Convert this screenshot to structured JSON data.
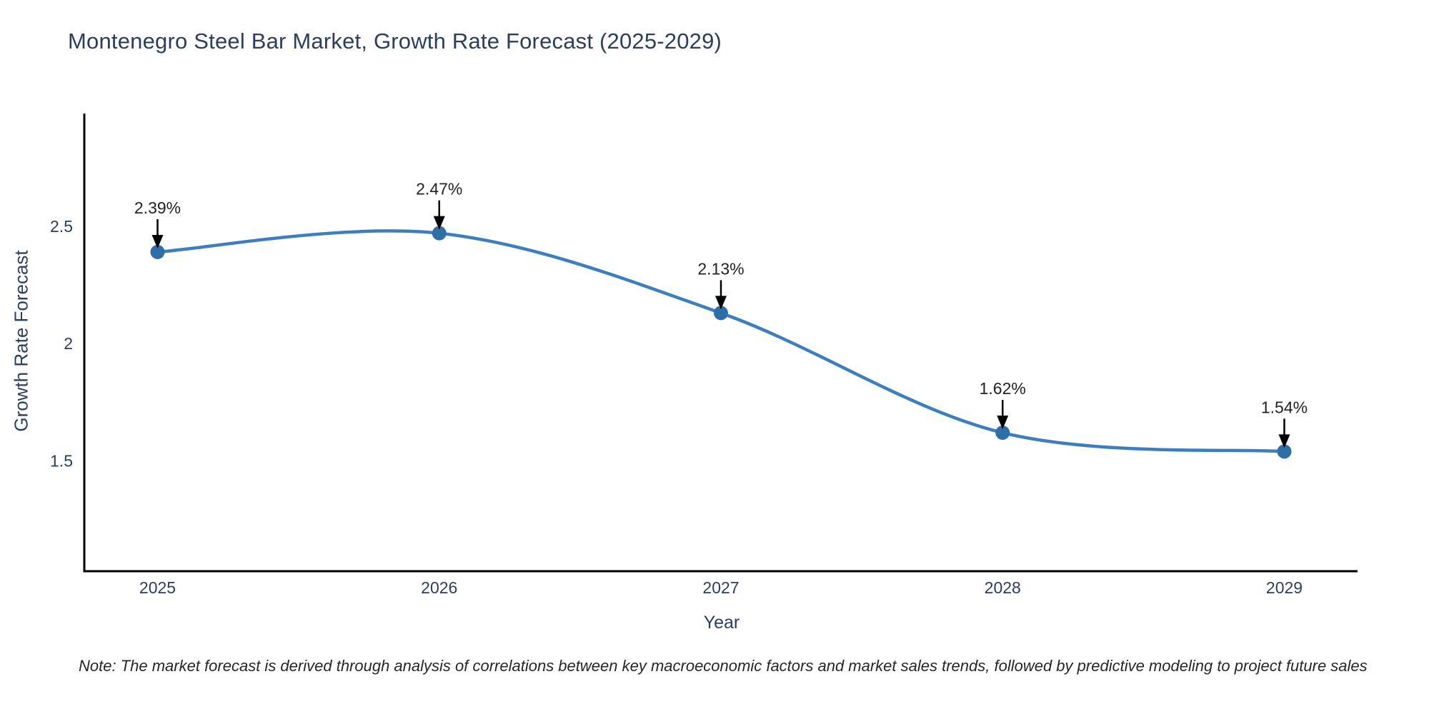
{
  "header": {
    "title": "Montenegro Steel Bar Market, Growth Rate Forecast (2025-2029)"
  },
  "footer": {
    "note": "Note: The market forecast is derived through analysis of correlations between key macroeconomic factors and market sales trends, followed by predictive modeling to project future sales"
  },
  "chart_data": {
    "type": "line",
    "title": "Montenegro Steel Bar Market, Growth Rate Forecast (2025-2029)",
    "xlabel": "Year",
    "ylabel": "Growth Rate Forecast",
    "x": [
      2025,
      2026,
      2027,
      2028,
      2029
    ],
    "series": [
      {
        "name": "Growth Rate Forecast",
        "values": [
          2.39,
          2.47,
          2.13,
          1.62,
          1.54
        ]
      }
    ],
    "point_labels": [
      "2.39%",
      "2.47%",
      "2.13%",
      "1.62%",
      "1.54%"
    ],
    "xtick_labels": [
      "2025",
      "2026",
      "2027",
      "2028",
      "2029"
    ],
    "ytick_values": [
      1.5,
      2.0,
      2.5
    ],
    "ytick_labels": [
      "1.5",
      "2",
      "2.5"
    ],
    "xlim": [
      2024.74,
      2029.26
    ],
    "ylim": [
      1.03,
      2.98
    ],
    "line_shape": "spline",
    "grid": false,
    "legend": "none",
    "colors": {
      "line": "#3d7ebd",
      "marker": "#2f6fa8",
      "axis_line": "#000000",
      "title_text": "#2a3f5f",
      "tick_text": "#2a3f5f",
      "annotation_text": "#222222",
      "annotation_arrow": "#000000",
      "note_text": "#262626",
      "background": "#ffffff"
    }
  }
}
